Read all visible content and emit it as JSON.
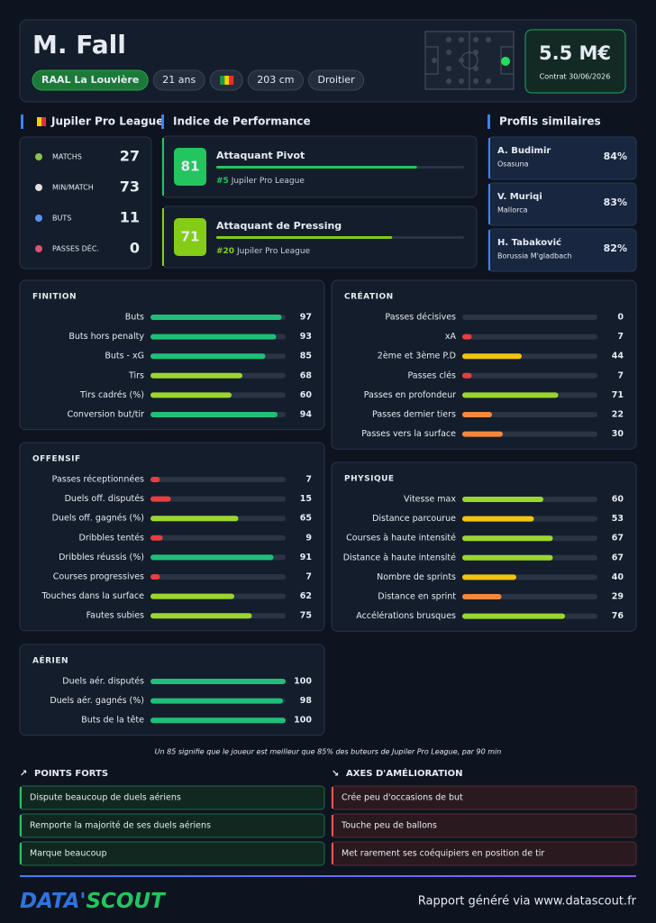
{
  "header": {
    "name": "M. Fall",
    "tags": [
      "RAAL La Louvière",
      "21 ans",
      "203 cm",
      "Droitier"
    ],
    "market_value": "5.5 M€",
    "contract": "Contrat 30/06/2026"
  },
  "league": {
    "name": "Jupiler Pro League",
    "stats": [
      {
        "label": "MATCHS",
        "value": 27
      },
      {
        "label": "MIN/MATCH",
        "value": 73
      },
      {
        "label": "BUTS",
        "value": 11
      },
      {
        "label": "PASSES DÉC.",
        "value": 0
      }
    ]
  },
  "performance": {
    "title": "Indice de Performance",
    "items": [
      {
        "score": 81,
        "role": "Attaquant Pivot",
        "rank": "#5"
      },
      {
        "score": 71,
        "role": "Attaquant de Pressing",
        "rank": "#20"
      }
    ]
  },
  "similar": {
    "title": "Profils similaires",
    "items": [
      {
        "name": "A. Budimir",
        "club": "Osasuna",
        "match": "84%"
      },
      {
        "name": "V. Muriqi",
        "club": "Mallorca",
        "match": "83%"
      },
      {
        "name": "H. Tabaković",
        "club": "Borussia M'gladbach",
        "match": "82%"
      }
    ]
  },
  "sections": [
    {
      "title": "FINITION",
      "rows": [
        {
          "label": "Buts",
          "value": 97
        },
        {
          "label": "Buts hors penalty",
          "value": 93
        },
        {
          "label": "Buts - xG",
          "value": 85
        },
        {
          "label": "Tirs",
          "value": 68
        },
        {
          "label": "Tirs cadrés (%)",
          "value": 60
        },
        {
          "label": "Conversion but/tir",
          "value": 94
        }
      ]
    },
    {
      "title": "CRÉATION",
      "rows": [
        {
          "label": "Passes décisives",
          "value": 0
        },
        {
          "label": "xA",
          "value": 7
        },
        {
          "label": "2ème et 3ème P.D",
          "value": 44
        },
        {
          "label": "Passes clés",
          "value": 7
        },
        {
          "label": "Passes en profondeur",
          "value": 71
        },
        {
          "label": "Passes dernier tiers",
          "value": 22
        },
        {
          "label": "Passes vers la surface",
          "value": 30
        }
      ]
    },
    {
      "title": "OFFENSIF",
      "rows": [
        {
          "label": "Passes réceptionnées",
          "value": 7
        },
        {
          "label": "Duels off. disputés",
          "value": 15
        },
        {
          "label": "Duels off. gagnés (%)",
          "value": 65
        },
        {
          "label": "Dribbles tentés",
          "value": 9
        },
        {
          "label": "Dribbles réussis (%)",
          "value": 91
        },
        {
          "label": "Courses progressives",
          "value": 7
        },
        {
          "label": "Touches dans la surface",
          "value": 62
        },
        {
          "label": "Fautes subies",
          "value": 75
        }
      ]
    },
    {
      "title": "PHYSIQUE",
      "rows": [
        {
          "label": "Vitesse max",
          "value": 60
        },
        {
          "label": "Distance parcourue",
          "value": 53
        },
        {
          "label": "Courses à haute intensité",
          "value": 67
        },
        {
          "label": "Distance à haute intensité",
          "value": 67
        },
        {
          "label": "Nombre de sprints",
          "value": 40
        },
        {
          "label": "Distance en sprint",
          "value": 29
        },
        {
          "label": "Accélérations brusques",
          "value": 76
        }
      ]
    },
    {
      "title": "AÉRIEN",
      "rows": [
        {
          "label": "Duels aér. disputés",
          "value": 100
        },
        {
          "label": "Duels aér. gagnés (%)",
          "value": 98
        },
        {
          "label": "Buts de la tête",
          "value": 100
        }
      ]
    }
  ],
  "note": "Un 85 signifie que le joueur est meilleur que 85% des buteurs de Jupiler Pro League, par 90 min",
  "strengths": {
    "title": "POINTS FORTS",
    "items": [
      "Dispute beaucoup de duels aériens",
      "Remporte la majorité de ses duels aériens",
      "Marque beaucoup"
    ]
  },
  "improvements": {
    "title": "AXES D'AMÉLIORATION",
    "items": [
      "Crée peu d'occasions de but",
      "Touche peu de ballons",
      "Met rarement ses coéquipiers en position de tir"
    ]
  },
  "footer": {
    "logo": [
      "DATA'",
      "SCOUT"
    ],
    "text": "Rapport généré via www.datascout.fr"
  }
}
